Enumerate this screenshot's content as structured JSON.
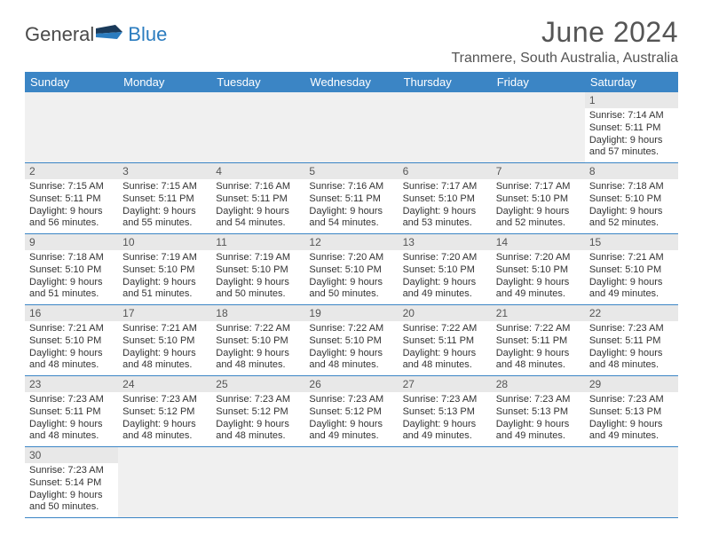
{
  "logo": {
    "text1": "General",
    "text2": "Blue"
  },
  "title": "June 2024",
  "location": "Tranmere, South Australia, Australia",
  "colors": {
    "header_bg": "#3b85c5",
    "header_text": "#ffffff",
    "daynum_bg": "#e8e8e8",
    "row_border": "#3b85c5",
    "logo_accent": "#2b7cbf",
    "logo_dark": "#1a3a5a"
  },
  "day_headers": [
    "Sunday",
    "Monday",
    "Tuesday",
    "Wednesday",
    "Thursday",
    "Friday",
    "Saturday"
  ],
  "weeks": [
    [
      null,
      null,
      null,
      null,
      null,
      null,
      {
        "n": "1",
        "sr": "Sunrise: 7:14 AM",
        "ss": "Sunset: 5:11 PM",
        "dl": "Daylight: 9 hours and 57 minutes."
      }
    ],
    [
      {
        "n": "2",
        "sr": "Sunrise: 7:15 AM",
        "ss": "Sunset: 5:11 PM",
        "dl": "Daylight: 9 hours and 56 minutes."
      },
      {
        "n": "3",
        "sr": "Sunrise: 7:15 AM",
        "ss": "Sunset: 5:11 PM",
        "dl": "Daylight: 9 hours and 55 minutes."
      },
      {
        "n": "4",
        "sr": "Sunrise: 7:16 AM",
        "ss": "Sunset: 5:11 PM",
        "dl": "Daylight: 9 hours and 54 minutes."
      },
      {
        "n": "5",
        "sr": "Sunrise: 7:16 AM",
        "ss": "Sunset: 5:11 PM",
        "dl": "Daylight: 9 hours and 54 minutes."
      },
      {
        "n": "6",
        "sr": "Sunrise: 7:17 AM",
        "ss": "Sunset: 5:10 PM",
        "dl": "Daylight: 9 hours and 53 minutes."
      },
      {
        "n": "7",
        "sr": "Sunrise: 7:17 AM",
        "ss": "Sunset: 5:10 PM",
        "dl": "Daylight: 9 hours and 52 minutes."
      },
      {
        "n": "8",
        "sr": "Sunrise: 7:18 AM",
        "ss": "Sunset: 5:10 PM",
        "dl": "Daylight: 9 hours and 52 minutes."
      }
    ],
    [
      {
        "n": "9",
        "sr": "Sunrise: 7:18 AM",
        "ss": "Sunset: 5:10 PM",
        "dl": "Daylight: 9 hours and 51 minutes."
      },
      {
        "n": "10",
        "sr": "Sunrise: 7:19 AM",
        "ss": "Sunset: 5:10 PM",
        "dl": "Daylight: 9 hours and 51 minutes."
      },
      {
        "n": "11",
        "sr": "Sunrise: 7:19 AM",
        "ss": "Sunset: 5:10 PM",
        "dl": "Daylight: 9 hours and 50 minutes."
      },
      {
        "n": "12",
        "sr": "Sunrise: 7:20 AM",
        "ss": "Sunset: 5:10 PM",
        "dl": "Daylight: 9 hours and 50 minutes."
      },
      {
        "n": "13",
        "sr": "Sunrise: 7:20 AM",
        "ss": "Sunset: 5:10 PM",
        "dl": "Daylight: 9 hours and 49 minutes."
      },
      {
        "n": "14",
        "sr": "Sunrise: 7:20 AM",
        "ss": "Sunset: 5:10 PM",
        "dl": "Daylight: 9 hours and 49 minutes."
      },
      {
        "n": "15",
        "sr": "Sunrise: 7:21 AM",
        "ss": "Sunset: 5:10 PM",
        "dl": "Daylight: 9 hours and 49 minutes."
      }
    ],
    [
      {
        "n": "16",
        "sr": "Sunrise: 7:21 AM",
        "ss": "Sunset: 5:10 PM",
        "dl": "Daylight: 9 hours and 48 minutes."
      },
      {
        "n": "17",
        "sr": "Sunrise: 7:21 AM",
        "ss": "Sunset: 5:10 PM",
        "dl": "Daylight: 9 hours and 48 minutes."
      },
      {
        "n": "18",
        "sr": "Sunrise: 7:22 AM",
        "ss": "Sunset: 5:10 PM",
        "dl": "Daylight: 9 hours and 48 minutes."
      },
      {
        "n": "19",
        "sr": "Sunrise: 7:22 AM",
        "ss": "Sunset: 5:10 PM",
        "dl": "Daylight: 9 hours and 48 minutes."
      },
      {
        "n": "20",
        "sr": "Sunrise: 7:22 AM",
        "ss": "Sunset: 5:11 PM",
        "dl": "Daylight: 9 hours and 48 minutes."
      },
      {
        "n": "21",
        "sr": "Sunrise: 7:22 AM",
        "ss": "Sunset: 5:11 PM",
        "dl": "Daylight: 9 hours and 48 minutes."
      },
      {
        "n": "22",
        "sr": "Sunrise: 7:23 AM",
        "ss": "Sunset: 5:11 PM",
        "dl": "Daylight: 9 hours and 48 minutes."
      }
    ],
    [
      {
        "n": "23",
        "sr": "Sunrise: 7:23 AM",
        "ss": "Sunset: 5:11 PM",
        "dl": "Daylight: 9 hours and 48 minutes."
      },
      {
        "n": "24",
        "sr": "Sunrise: 7:23 AM",
        "ss": "Sunset: 5:12 PM",
        "dl": "Daylight: 9 hours and 48 minutes."
      },
      {
        "n": "25",
        "sr": "Sunrise: 7:23 AM",
        "ss": "Sunset: 5:12 PM",
        "dl": "Daylight: 9 hours and 48 minutes."
      },
      {
        "n": "26",
        "sr": "Sunrise: 7:23 AM",
        "ss": "Sunset: 5:12 PM",
        "dl": "Daylight: 9 hours and 49 minutes."
      },
      {
        "n": "27",
        "sr": "Sunrise: 7:23 AM",
        "ss": "Sunset: 5:13 PM",
        "dl": "Daylight: 9 hours and 49 minutes."
      },
      {
        "n": "28",
        "sr": "Sunrise: 7:23 AM",
        "ss": "Sunset: 5:13 PM",
        "dl": "Daylight: 9 hours and 49 minutes."
      },
      {
        "n": "29",
        "sr": "Sunrise: 7:23 AM",
        "ss": "Sunset: 5:13 PM",
        "dl": "Daylight: 9 hours and 49 minutes."
      }
    ],
    [
      {
        "n": "30",
        "sr": "Sunrise: 7:23 AM",
        "ss": "Sunset: 5:14 PM",
        "dl": "Daylight: 9 hours and 50 minutes."
      },
      null,
      null,
      null,
      null,
      null,
      null
    ]
  ]
}
